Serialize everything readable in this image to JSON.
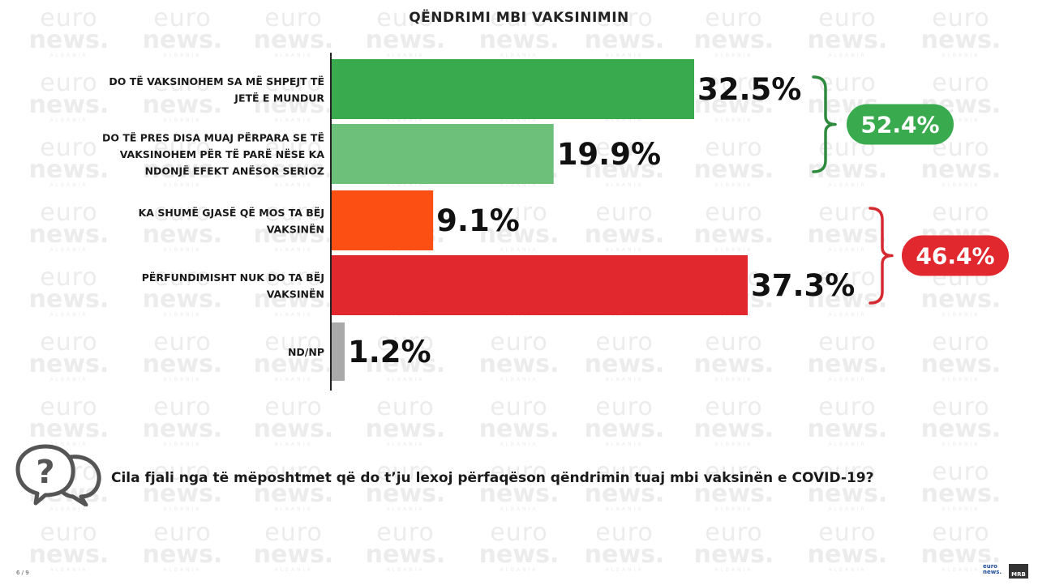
{
  "watermark": {
    "line1": "euro",
    "line2": "news.",
    "line3": "ALBANIA"
  },
  "chart_data": {
    "type": "bar",
    "orientation": "horizontal",
    "title": "QËNDRIMI MBI VAKSINIMIN",
    "xlim": [
      0,
      50
    ],
    "categories": [
      [
        "DO TË VAKSINOHEM SA MË SHPEJT TË",
        "JETË E MUNDUR"
      ],
      [
        "DO TË PRES DISA MUAJ PËRPARA SE TË",
        "VAKSINOHEM PËR TË PARË NËSE KA",
        "NDONJË EFEKT ANËSOR SERIOZ"
      ],
      [
        "KA SHUMË GJASË QË MOS TA BËJ",
        "VAKSINËN"
      ],
      [
        "PËRFUNDIMISHT NUK DO TA BËJ",
        "VAKSINËN"
      ],
      [
        "ND/NP"
      ]
    ],
    "values": [
      32.5,
      19.9,
      9.1,
      37.3,
      1.2
    ],
    "value_labels": [
      "32.5%",
      "19.9%",
      "9.1%",
      "37.3%",
      "1.2%"
    ],
    "colors": [
      "#3aaa4e",
      "#6cc07a",
      "#fb4f14",
      "#e0282e",
      "#a9a9a9"
    ],
    "groups": [
      {
        "label": "52.4%",
        "value": 52.4,
        "rows": [
          0,
          1
        ],
        "color": "#3aaa4e",
        "brace_color": "#2e8b3e"
      },
      {
        "label": "46.4%",
        "value": 46.4,
        "rows": [
          2,
          3
        ],
        "color": "#e0282e",
        "brace_color": "#d42a30"
      }
    ]
  },
  "question": "Cila fjali nga të mëposhtmet që do t’ju lexoj përfaqëson qëndrimin tuaj mbi vaksinën e COVID-19?",
  "page_number": "6 / 9",
  "logo": {
    "line1": "euro",
    "line2": "news.",
    "badge": "MRB"
  }
}
